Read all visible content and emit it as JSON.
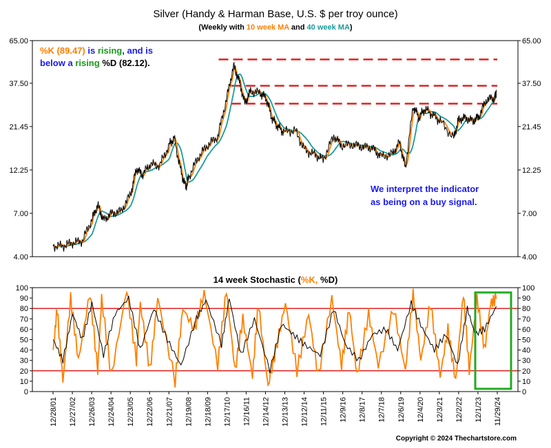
{
  "colors": {
    "background": "#ffffff",
    "price_line": "#000000",
    "ma10": "#ff7f00",
    "ma40": "#1a9a9a",
    "stoch_k": "#ff7f00",
    "stoch_d": "#000000",
    "resistance": "#e02020",
    "stoch_lines": "#e02020",
    "box": "#22aa22",
    "annotation_blue": "#1a1aee",
    "annotation_green": "#1a9a1a",
    "annotation_orange": "#ff7f00"
  },
  "header": {
    "title": "Silver (Handy & Harman Base, U.S. $ per troy ounce)",
    "subtitle_prefix": "(Weekly with ",
    "subtitle_ma10": "10 week MA",
    "subtitle_and": " and ",
    "subtitle_ma40": "40 week MA",
    "subtitle_suffix": ")"
  },
  "annotation": {
    "k_text": "%K (89.47)",
    "is_rising1": " is ",
    "rising1": "rising",
    "and_is": ", and is",
    "below_a": "below a ",
    "rising2": "rising",
    "d_text": " %D (82.12).",
    "interpret_line1": "We interpret the indicator",
    "interpret_line2": "as being on a buy signal."
  },
  "stoch_title": {
    "prefix": "14 week Stochastic (",
    "k": "%K, ",
    "d": "%D",
    "suffix": ")"
  },
  "copyright": "Copyright © 2024 Thechartstore.com",
  "chart_data": [
    {
      "type": "line",
      "title": "Silver (Handy & Harman Base, U.S. $ per troy ounce)",
      "scale": "log",
      "y_ticks": [
        "65.00",
        "37.50",
        "21.45",
        "12.25",
        "7.00",
        "4.00"
      ],
      "y_tick_values": [
        65,
        37.5,
        21.45,
        12.25,
        7,
        4
      ],
      "ylim": [
        4,
        65
      ],
      "xlim": [
        2001.99,
        2024.95
      ],
      "series": [
        {
          "name": "Silver",
          "x": [
            2001.99,
            2002.5,
            2003.0,
            2003.5,
            2004.0,
            2004.3,
            2004.6,
            2005.0,
            2005.5,
            2006.0,
            2006.3,
            2006.6,
            2007.0,
            2007.5,
            2008.0,
            2008.25,
            2008.6,
            2008.85,
            2009.0,
            2009.5,
            2010.0,
            2010.5,
            2010.95,
            2011.32,
            2011.6,
            2011.9,
            2012.2,
            2012.7,
            2013.0,
            2013.3,
            2013.6,
            2013.9,
            2014.5,
            2015.0,
            2015.5,
            2015.95,
            2016.5,
            2016.9,
            2017.5,
            2018.0,
            2018.5,
            2018.9,
            2019.5,
            2019.9,
            2020.2,
            2020.6,
            2020.9,
            2021.2,
            2021.6,
            2022.0,
            2022.7,
            2022.95,
            2023.3,
            2023.7,
            2024.0,
            2024.4,
            2024.8,
            2024.9
          ],
          "y": [
            4.6,
            4.6,
            4.8,
            4.9,
            6.5,
            7.8,
            6.4,
            7.0,
            7.2,
            9.0,
            12.5,
            11.5,
            13.2,
            13.0,
            17.0,
            18.5,
            12.0,
            9.8,
            11.2,
            14.5,
            17.0,
            18.8,
            30.5,
            47.0,
            39.0,
            29.0,
            34.0,
            33.0,
            31.0,
            24.0,
            21.5,
            20.0,
            20.5,
            15.8,
            15.0,
            14.0,
            19.0,
            16.8,
            17.0,
            16.5,
            16.3,
            14.6,
            15.0,
            17.5,
            12.5,
            28.0,
            24.0,
            27.0,
            25.0,
            23.0,
            18.5,
            23.5,
            24.0,
            23.0,
            24.5,
            30.5,
            31.0,
            33.5
          ]
        }
      ],
      "resistance_levels": [
        51.0,
        36.3,
        28.8
      ]
    },
    {
      "type": "line",
      "title": "14 week Stochastic (%K, %D)",
      "y_ticks": [
        "0",
        "10",
        "20",
        "30",
        "40",
        "50",
        "60",
        "70",
        "80",
        "90",
        "100"
      ],
      "ylim": [
        0,
        100
      ],
      "reference_lines": [
        20,
        80
      ],
      "latest": {
        "K": 89.47,
        "D": 82.12
      },
      "x_tick_labels": [
        "12/28/01",
        "12/27/02",
        "12/26/03",
        "12/24/04",
        "12/23/05",
        "12/22/06",
        "12/21/07",
        "12/19/08",
        "12/18/09",
        "12/17/10",
        "12/16/11",
        "12/14/12",
        "12/13/13",
        "12/12/14",
        "12/11/15",
        "12/9/16",
        "12/8/17",
        "12/7/18",
        "12/6/19",
        "12/4/20",
        "12/3/21",
        "12/2/22",
        "12/1/23",
        "11/29/24"
      ],
      "series": [
        {
          "name": "%K",
          "x": [
            2002.0,
            2002.2,
            2002.5,
            2002.9,
            2003.3,
            2003.9,
            2004.3,
            2004.5,
            2005.0,
            2005.8,
            2006.3,
            2006.5,
            2007.0,
            2007.4,
            2008.3,
            2008.7,
            2009.3,
            2009.8,
            2010.5,
            2010.95,
            2011.4,
            2011.8,
            2012.3,
            2012.6,
            2013.1,
            2013.5,
            2014.0,
            2014.6,
            2015.2,
            2015.7,
            2016.4,
            2016.9,
            2017.3,
            2017.7,
            2018.3,
            2018.8,
            2019.6,
            2020.2,
            2020.6,
            2021.0,
            2021.5,
            2022.0,
            2022.4,
            2022.8,
            2023.2,
            2023.5,
            2023.9,
            2024.3,
            2024.6,
            2024.9
          ],
          "y": [
            40,
            80,
            10,
            90,
            30,
            95,
            20,
            90,
            15,
            98,
            30,
            85,
            20,
            90,
            10,
            80,
            60,
            95,
            25,
            98,
            20,
            70,
            15,
            85,
            5,
            40,
            85,
            20,
            75,
            15,
            90,
            25,
            80,
            15,
            75,
            25,
            80,
            20,
            95,
            30,
            85,
            15,
            60,
            10,
            95,
            20,
            90,
            40,
            85,
            89.47
          ]
        },
        {
          "name": "%D",
          "x": [
            2002.0,
            2002.5,
            2003.0,
            2003.5,
            2004.0,
            2004.6,
            2005.2,
            2005.9,
            2006.5,
            2007.2,
            2007.9,
            2008.6,
            2009.4,
            2009.9,
            2010.7,
            2011.1,
            2011.7,
            2012.4,
            2013.2,
            2013.8,
            2014.4,
            2015.0,
            2015.8,
            2016.5,
            2017.1,
            2017.8,
            2018.5,
            2019.2,
            2019.8,
            2020.5,
            2021.1,
            2021.7,
            2022.3,
            2022.9,
            2023.4,
            2023.8,
            2024.3,
            2024.9
          ],
          "y": [
            50,
            30,
            75,
            50,
            85,
            35,
            75,
            90,
            40,
            80,
            50,
            25,
            70,
            88,
            45,
            90,
            35,
            70,
            20,
            65,
            55,
            45,
            35,
            80,
            45,
            30,
            55,
            60,
            40,
            85,
            60,
            40,
            55,
            25,
            80,
            55,
            60,
            82.12
          ]
        }
      ]
    }
  ]
}
